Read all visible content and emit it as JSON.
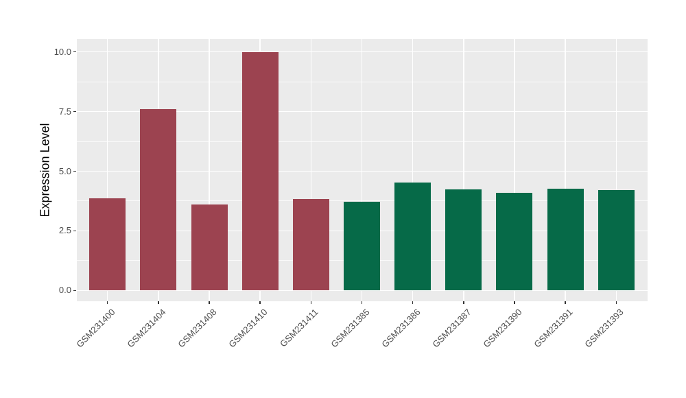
{
  "style": {
    "panel_bg": "#EBEBEB",
    "grid_color": "#FFFFFF",
    "tick_mark_color": "#333333",
    "tick_label_color": "#4D4D4D",
    "axis_title_color": "#000000",
    "bar_color_red": "#9C4350",
    "bar_color_green": "#066A48"
  },
  "chart_data": {
    "type": "bar",
    "title": "",
    "xlabel": "",
    "ylabel": "Expression Level",
    "categories": [
      "GSM231400",
      "GSM231404",
      "GSM231408",
      "GSM231410",
      "GSM231411",
      "GSM231385",
      "GSM231386",
      "GSM231387",
      "GSM231390",
      "GSM231391",
      "GSM231393"
    ],
    "values": [
      3.87,
      7.6,
      3.6,
      10.0,
      3.84,
      3.71,
      4.52,
      4.23,
      4.1,
      4.26,
      4.2
    ],
    "bar_colors": [
      "#9C4350",
      "#9C4350",
      "#9C4350",
      "#9C4350",
      "#9C4350",
      "#066A48",
      "#066A48",
      "#066A48",
      "#066A48",
      "#066A48",
      "#066A48"
    ],
    "ylim": [
      0,
      10.5
    ],
    "yticks": [
      0,
      2.5,
      5,
      7.5,
      10
    ],
    "ytick_labels": [
      "0.0",
      "2.5",
      "5.0",
      "7.5",
      "10.0"
    ],
    "minor_gridlines": [
      1.25,
      3.75,
      6.25,
      8.75
    ],
    "grid": "on",
    "legend_position": "none",
    "x_label_rotation_deg": 45
  }
}
